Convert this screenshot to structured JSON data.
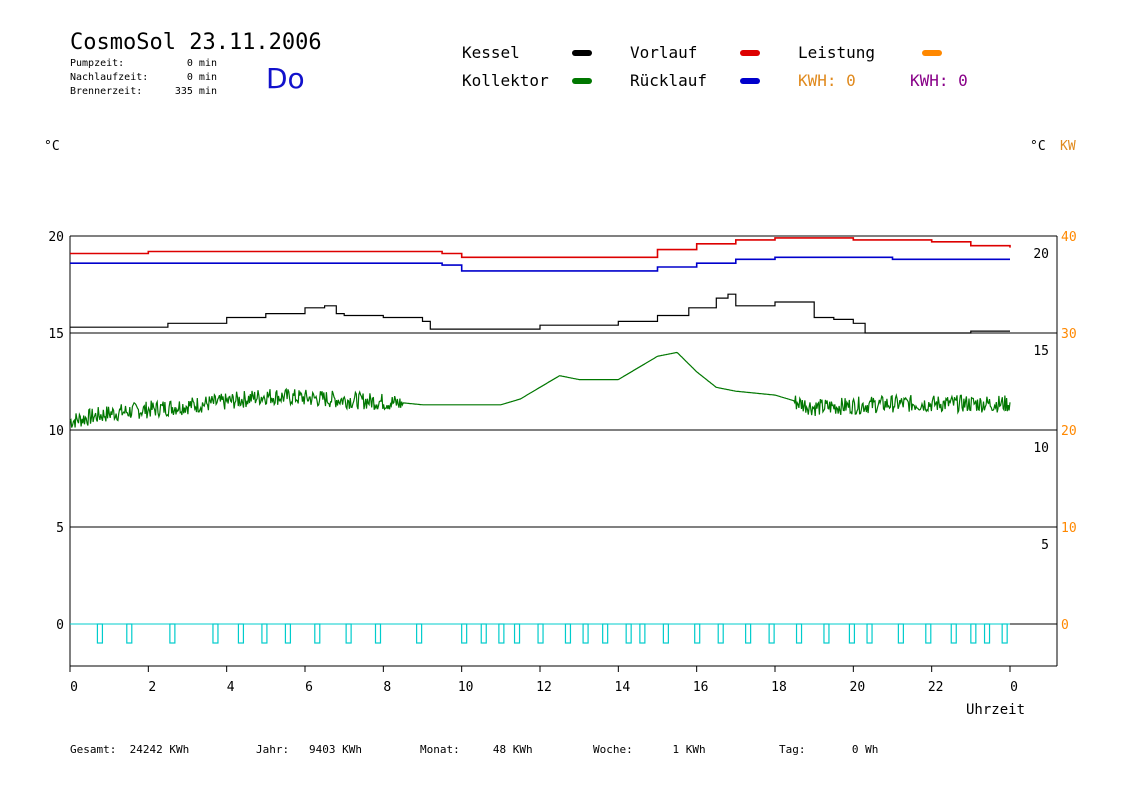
{
  "header": {
    "title": "CosmoSol 23.11.2006",
    "weekday": "Do",
    "stats": [
      {
        "label": "Pumpzeit:",
        "value": "0 min"
      },
      {
        "label": "Nachlaufzeit:",
        "value": "0 min"
      },
      {
        "label": "Brennerzeit:",
        "value": "335 min"
      }
    ]
  },
  "legend": {
    "kessel": "Kessel",
    "vorlauf": "Vorlauf",
    "leistung": "Leistung",
    "kollektor": "Kollektor",
    "ruecklauf": "Rücklauf",
    "kwh_orange": "KWH: 0",
    "kwh_purple": "KWH: 0"
  },
  "colors": {
    "kessel": "#000000",
    "vorlauf": "#dd0000",
    "ruecklauf": "#0000cc",
    "kollektor": "#007700",
    "leistung": "#ff8800",
    "kwh_orange": "#e08a1e",
    "kwh_purple": "#880088",
    "pump": "#00cccc"
  },
  "axes": {
    "left_unit": "°C",
    "right_unit_c": "°C",
    "right_unit_kw": "KW",
    "xlabel": "Uhrzeit"
  },
  "footer": [
    {
      "label": "Gesamt:",
      "value": "24242 KWh"
    },
    {
      "label": "Jahr:",
      "value": "9403 KWh"
    },
    {
      "label": "Monat:",
      "value": "48 KWh"
    },
    {
      "label": "Woche:",
      "value": "1 KWh"
    },
    {
      "label": "Tag:",
      "value": "0 Wh"
    }
  ],
  "chart_data": {
    "type": "line",
    "x_ticks": [
      "0",
      "2",
      "4",
      "6",
      "8",
      "10",
      "12",
      "14",
      "16",
      "18",
      "20",
      "22",
      "0"
    ],
    "y_left_ticks": [
      "20",
      "15",
      "10",
      "5",
      "0"
    ],
    "y_right_inner_ticks": [
      "20",
      "15",
      "10",
      "5"
    ],
    "y_right_kw_ticks": [
      "40",
      "30",
      "20",
      "10",
      "0"
    ],
    "ylim": [
      -1.5,
      20.5
    ],
    "xlim": [
      0,
      25
    ],
    "series": [
      {
        "name": "Vorlauf",
        "key": "vorlauf",
        "x": [
          0,
          2,
          4,
          6,
          8,
          9.5,
          10,
          12,
          13,
          14,
          15,
          16,
          17,
          18,
          19,
          20,
          21,
          22,
          23,
          24
        ],
        "y": [
          19.1,
          19.2,
          19.2,
          19.2,
          19.2,
          19.1,
          18.9,
          18.9,
          18.9,
          18.9,
          19.3,
          19.6,
          19.8,
          19.9,
          19.9,
          19.8,
          19.8,
          19.7,
          19.5,
          19.4
        ]
      },
      {
        "name": "Rücklauf",
        "key": "ruecklauf",
        "x": [
          0,
          2,
          4,
          6,
          8,
          9.5,
          10,
          12,
          13,
          14,
          15,
          16,
          17,
          18,
          19,
          20,
          21,
          22,
          23,
          24
        ],
        "y": [
          18.6,
          18.6,
          18.6,
          18.6,
          18.6,
          18.5,
          18.2,
          18.2,
          18.2,
          18.2,
          18.4,
          18.6,
          18.8,
          18.9,
          18.9,
          18.9,
          18.8,
          18.8,
          18.8,
          18.8
        ],
        "color_note": "Rücklauf"
      },
      {
        "name": "Kessel",
        "key": "kessel",
        "x": [
          0,
          1.5,
          2.5,
          4,
          5,
          6,
          6.5,
          6.8,
          7,
          8,
          9,
          9.2,
          10,
          11,
          12,
          13,
          14,
          15,
          15.8,
          16.5,
          16.8,
          17,
          17.5,
          18,
          18.5,
          19,
          19.5,
          20,
          20.3,
          20.5,
          21,
          22,
          23,
          24
        ],
        "y": [
          15.3,
          15.3,
          15.5,
          15.8,
          16,
          16.3,
          16.4,
          16.0,
          15.9,
          15.8,
          15.6,
          15.2,
          15.2,
          15.2,
          15.4,
          15.4,
          15.6,
          15.9,
          16.3,
          16.8,
          17.0,
          16.4,
          16.4,
          16.6,
          16.6,
          15.8,
          15.7,
          15.5,
          15.0,
          15.0,
          15.0,
          15.0,
          15.1,
          15.1
        ]
      },
      {
        "name": "Kollektor",
        "key": "kollektor",
        "x": [
          0,
          1,
          2,
          3,
          4,
          5,
          6,
          7,
          8,
          9,
          10,
          11,
          11.5,
          12,
          12.5,
          13,
          14,
          14.5,
          15,
          15.5,
          16,
          16.5,
          17,
          18,
          19,
          20,
          21,
          22,
          23,
          24
        ],
        "y": [
          10.5,
          10.9,
          11.1,
          11.3,
          11.5,
          11.8,
          11.7,
          11.6,
          11.5,
          11.3,
          11.3,
          11.3,
          11.6,
          12.2,
          12.8,
          12.6,
          12.6,
          13.2,
          13.8,
          14.0,
          13.0,
          12.2,
          12.0,
          11.8,
          11.2,
          11.3,
          11.4,
          11.4,
          11.4,
          11.4
        ],
        "noisy_ranges": [
          [
            0,
            8.5
          ],
          [
            18.5,
            24
          ]
        ]
      }
    ],
    "pump_pulses": [
      0.7,
      1.45,
      2.55,
      3.65,
      4.3,
      4.9,
      5.5,
      6.25,
      7.05,
      7.8,
      8.85,
      10.0,
      10.5,
      10.95,
      11.35,
      11.95,
      12.65,
      13.1,
      13.6,
      14.2,
      14.55,
      15.15,
      15.95,
      16.55,
      17.25,
      17.85,
      18.55,
      19.25,
      19.9,
      20.35,
      21.15,
      21.85,
      22.5,
      23.0,
      23.35,
      23.8
    ]
  }
}
